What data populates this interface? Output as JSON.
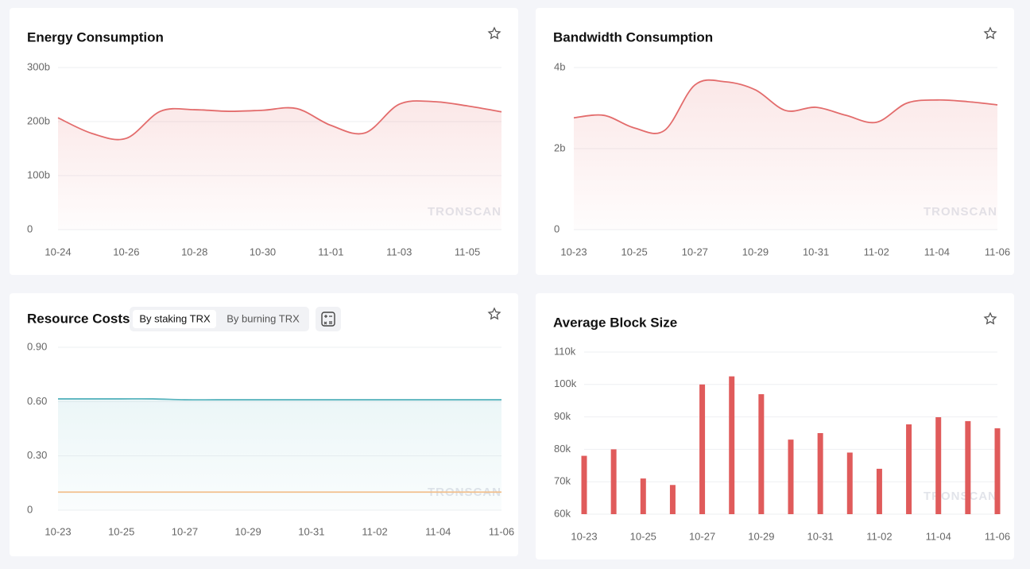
{
  "chart_data": [
    {
      "type": "line",
      "title": "Energy Consumption",
      "categories": [
        "10-24",
        null,
        "10-26",
        null,
        "10-28",
        null,
        "10-30",
        null,
        "11-01",
        null,
        "11-03",
        null,
        "11-05",
        null
      ],
      "values": [
        207,
        178,
        169,
        219,
        222,
        219,
        221,
        224,
        193,
        179,
        232,
        237,
        229,
        218
      ],
      "color": "#e36c6c",
      "ylim": [
        0,
        300
      ],
      "yticks": [
        0,
        {
          "value": 100,
          "label": "100b"
        },
        {
          "value": 200,
          "label": "200b"
        },
        {
          "value": 300,
          "label": "300b"
        }
      ],
      "grid": true
    },
    {
      "type": "line",
      "title": "Bandwidth Consumption",
      "categories": [
        "10-23",
        null,
        "10-25",
        null,
        "10-27",
        null,
        "10-29",
        null,
        "10-31",
        null,
        "11-02",
        null,
        "11-04",
        null,
        "11-06"
      ],
      "values": [
        2.76,
        2.82,
        2.51,
        2.45,
        3.57,
        3.65,
        3.45,
        2.94,
        3.02,
        2.82,
        2.65,
        3.12,
        3.2,
        3.16,
        3.08
      ],
      "color": "#e36c6c",
      "ylim": [
        0,
        4
      ],
      "yticks": [
        0,
        {
          "value": 2,
          "label": "2b"
        },
        {
          "value": 4,
          "label": "4b"
        }
      ],
      "grid": true
    },
    {
      "type": "line",
      "title": "Resource Costs",
      "categories": [
        "10-23",
        null,
        "10-25",
        null,
        "10-27",
        null,
        "10-29",
        null,
        "10-31",
        null,
        "11-02",
        null,
        "11-04",
        null,
        "11-06"
      ],
      "series": [
        {
          "color": "#5bb5bf",
          "values": [
            0.615,
            0.615,
            0.615,
            0.615,
            0.61,
            0.61,
            0.61,
            0.61,
            0.61,
            0.61,
            0.61,
            0.61,
            0.61,
            0.61,
            0.61
          ]
        },
        {
          "color": "#f2c08d",
          "values": [
            0.1,
            0.1,
            0.1,
            0.1,
            0.1,
            0.1,
            0.1,
            0.1,
            0.1,
            0.1,
            0.1,
            0.1,
            0.1,
            0.1,
            0.1
          ]
        }
      ],
      "ylim": [
        0,
        0.9
      ],
      "yticks": [
        0,
        {
          "value": 0.3,
          "label": "0.30"
        },
        {
          "value": 0.6,
          "label": "0.60"
        },
        {
          "value": 0.9,
          "label": "0.90"
        }
      ],
      "grid": true
    },
    {
      "type": "bar",
      "title": "Average Block Size",
      "categories": [
        "10-23",
        null,
        "10-25",
        null,
        "10-27",
        null,
        "10-29",
        null,
        "10-31",
        null,
        "11-02",
        null,
        "11-04",
        null,
        "11-06"
      ],
      "values": [
        78,
        80,
        71,
        69,
        100,
        102.5,
        97,
        83,
        85,
        79,
        74,
        87.7,
        89.9,
        88.7,
        86.5
      ],
      "color": "#e05b5b",
      "ylim": [
        60,
        110
      ],
      "yticks": [
        {
          "value": 60,
          "label": "60k"
        },
        {
          "value": 70,
          "label": "70k"
        },
        {
          "value": 80,
          "label": "80k"
        },
        {
          "value": 90,
          "label": "90k"
        },
        {
          "value": 100,
          "label": "100k"
        },
        {
          "value": 110,
          "label": "110k"
        }
      ],
      "grid": true
    }
  ],
  "controls": {
    "staking": "By staking TRX",
    "burning": "By burning TRX"
  },
  "watermark": "TRONSCAN"
}
